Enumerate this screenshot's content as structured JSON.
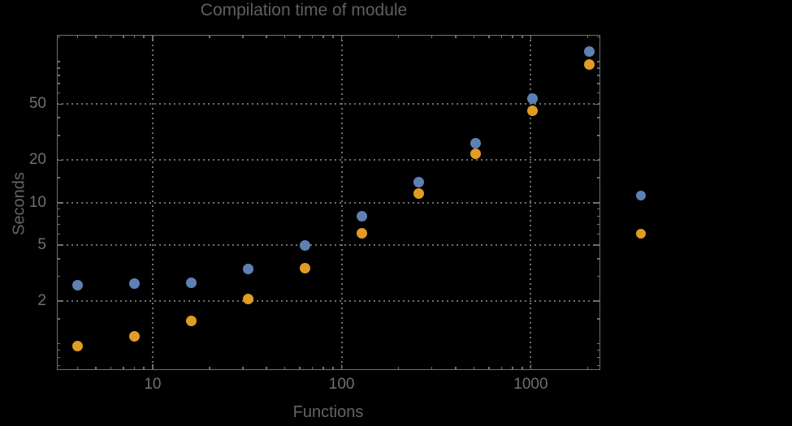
{
  "window": {
    "background": "#000000"
  },
  "colors": {
    "background": "#000000",
    "frame": "#6f6f6f",
    "grid": "#6f6f6f",
    "tick_label": "#6f6f6f",
    "axis_label": "#646464",
    "title": "#5f5f5f",
    "series_blue": "#5E81B5",
    "series_orange": "#E19C24"
  },
  "chart_data": {
    "type": "scatter",
    "title": "Compilation time of module",
    "xlabel": "Functions",
    "ylabel": "Seconds",
    "x_scale": "log",
    "y_scale": "log",
    "xlim": [
      3.1,
      2320
    ],
    "ylim": [
      0.65,
      155
    ],
    "x_major_ticks": [
      10,
      100,
      1000
    ],
    "x_major_tick_labels": [
      "10",
      "100",
      "1000"
    ],
    "y_major_ticks": [
      2,
      5,
      10,
      20,
      50
    ],
    "y_major_tick_labels": [
      "2",
      "5",
      "10",
      "20",
      "50"
    ],
    "x_minor_ticks": [
      4,
      5,
      6,
      7,
      8,
      9,
      20,
      30,
      40,
      50,
      60,
      70,
      80,
      90,
      200,
      300,
      400,
      500,
      600,
      700,
      800,
      900,
      2000
    ],
    "y_minor_ticks": [
      0.7,
      0.8,
      0.9,
      1,
      1.5,
      3,
      4,
      6,
      7,
      8,
      9,
      15,
      30,
      40,
      60,
      70,
      80,
      90,
      100,
      150
    ],
    "grid": "major, dotted",
    "frame": true,
    "x": [
      4,
      8,
      16,
      32,
      64,
      128,
      256,
      512,
      1024,
      2048
    ],
    "series": [
      {
        "name": "series-1-blue",
        "color": "#5E81B5",
        "values": [
          2.6,
          2.65,
          2.7,
          3.4,
          4.95,
          8.0,
          13.9,
          26.5,
          54.5,
          118
        ]
      },
      {
        "name": "series-2-orange",
        "color": "#E19C24",
        "values": [
          0.96,
          1.13,
          1.44,
          2.07,
          3.44,
          6.1,
          11.6,
          22.1,
          45,
          96
        ]
      }
    ],
    "legend": {
      "position": "right-of-plot",
      "labels_visible": false,
      "entries": [
        {
          "series": "series-1-blue",
          "color": "#5E81B5"
        },
        {
          "series": "series-2-orange",
          "color": "#E19C24"
        }
      ]
    }
  }
}
